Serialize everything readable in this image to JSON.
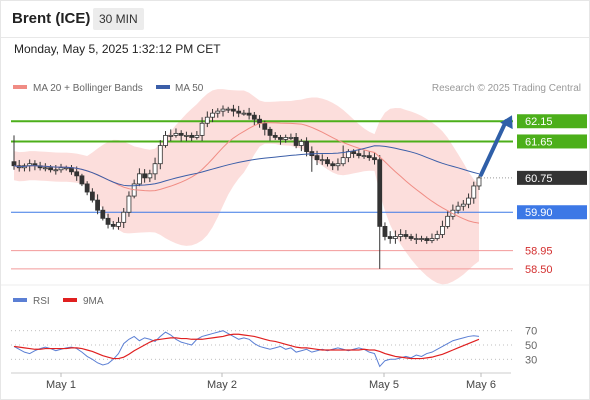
{
  "header": {
    "title": "Brent (ICE)",
    "timeframe": "30 MIN",
    "datetime": "Monday, May 5, 2025 1:32:12 PM CET"
  },
  "chart_data": [
    {
      "type": "candlestick",
      "title": "Brent (ICE)",
      "legend": [
        {
          "name": "MA 20 + Bollinger Bands",
          "color": "#f08c84"
        },
        {
          "name": "MA 50",
          "color": "#3b5ea8"
        }
      ],
      "credit": "Research © 2025 Trading Central",
      "x_ticks": [
        "May 1",
        "May 2",
        "May 5",
        "May 6"
      ],
      "price_levels": [
        {
          "label": "62.15",
          "value": 62.15,
          "style": "resistance",
          "color": "#4caf1a"
        },
        {
          "label": "61.65",
          "value": 61.65,
          "style": "resistance",
          "color": "#4caf1a"
        },
        {
          "label": "60.75",
          "value": 60.75,
          "style": "last",
          "color": "#333333"
        },
        {
          "label": "59.90",
          "value": 59.9,
          "style": "pivot",
          "color": "#3c78e6"
        },
        {
          "label": "58.95",
          "value": 58.95,
          "style": "support",
          "color": "#d32f2f"
        },
        {
          "label": "58.50",
          "value": 58.5,
          "style": "support",
          "color": "#d32f2f"
        }
      ],
      "y_range": [
        58.2,
        62.7
      ],
      "close": [
        61.05,
        61.0,
        61.05,
        61.1,
        61.05,
        61.0,
        61.0,
        60.95,
        60.95,
        61.0,
        61.0,
        60.9,
        60.8,
        60.6,
        60.4,
        60.2,
        59.95,
        59.75,
        59.6,
        59.55,
        59.65,
        59.9,
        60.3,
        60.6,
        60.85,
        60.75,
        60.85,
        61.1,
        61.55,
        61.8,
        61.8,
        61.85,
        61.8,
        61.8,
        61.75,
        61.8,
        62.1,
        62.25,
        62.35,
        62.4,
        62.45,
        62.45,
        62.4,
        62.35,
        62.35,
        62.3,
        62.2,
        62.1,
        61.95,
        61.8,
        61.75,
        61.7,
        61.75,
        61.75,
        61.55,
        61.65,
        61.4,
        61.3,
        61.2,
        61.2,
        61.1,
        61.05,
        61.1,
        61.25,
        61.4,
        61.35,
        61.3,
        61.3,
        61.25,
        61.2,
        59.55,
        59.3,
        59.25,
        59.3,
        59.35,
        59.3,
        59.25,
        59.25,
        59.25,
        59.2,
        59.25,
        59.35,
        59.55,
        59.8,
        59.95,
        60.05,
        60.1,
        60.25,
        60.55,
        60.75
      ]
    },
    {
      "type": "line",
      "title": "RSI",
      "series": [
        {
          "name": "RSI",
          "color": "#5b7fd4"
        },
        {
          "name": "9MA",
          "color": "#e02020"
        }
      ],
      "y_ticks": [
        70,
        50,
        30
      ],
      "rsi": [
        48,
        44,
        40,
        38,
        42,
        45,
        47,
        45,
        42,
        44,
        46,
        47,
        45,
        40,
        34,
        30,
        25,
        22,
        24,
        30,
        38,
        52,
        58,
        62,
        56,
        60,
        58,
        55,
        62,
        68,
        64,
        58,
        54,
        52,
        50,
        58,
        62,
        64,
        66,
        68,
        70,
        66,
        62,
        58,
        60,
        58,
        52,
        48,
        46,
        44,
        46,
        48,
        44,
        46,
        40,
        42,
        44,
        40,
        42,
        44,
        42,
        44,
        46,
        44,
        42,
        44,
        46,
        44,
        40,
        38,
        20,
        28,
        30,
        30,
        32,
        34,
        32,
        36,
        34,
        38,
        40,
        44,
        48,
        52,
        56,
        58,
        60,
        62,
        63,
        62
      ],
      "ma9": [
        48,
        47,
        46,
        45,
        44,
        44,
        45,
        45,
        45,
        45,
        45,
        46,
        46,
        45,
        43,
        41,
        38,
        35,
        33,
        31,
        31,
        33,
        37,
        42,
        46,
        50,
        54,
        57,
        58,
        59,
        60,
        60,
        59,
        59,
        58,
        58,
        58,
        59,
        60,
        61,
        62,
        64,
        65,
        65,
        64,
        63,
        62,
        60,
        58,
        56,
        55,
        53,
        51,
        49,
        47,
        46,
        46,
        45,
        44,
        43,
        43,
        43,
        43,
        43,
        43,
        43,
        43,
        44,
        43,
        43,
        41,
        38,
        36,
        34,
        33,
        32,
        31,
        31,
        31,
        32,
        33,
        35,
        37,
        40,
        43,
        46,
        49,
        52,
        55,
        58
      ]
    }
  ]
}
